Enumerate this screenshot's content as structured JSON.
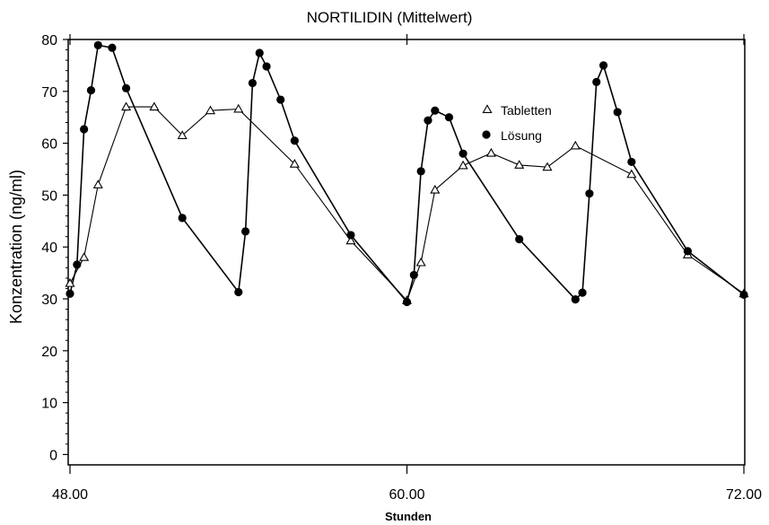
{
  "chart_data": {
    "type": "line",
    "title": "NORTILIDIN (Mittelwert)",
    "xlabel": "Stunden",
    "ylabel": "Konzentration (ng/ml)",
    "xlim": [
      48,
      72
    ],
    "ylim": [
      -2,
      80
    ],
    "x_ticks": [
      48,
      60,
      72
    ],
    "x_tick_labels": [
      "48.00",
      "60.00",
      "72.00"
    ],
    "y_ticks": [
      0,
      10,
      20,
      30,
      40,
      50,
      60,
      70,
      80
    ],
    "y_tick_labels": [
      "0",
      "10",
      "20",
      "30",
      "40",
      "50",
      "60",
      "70",
      "80"
    ],
    "grid": false,
    "legend_position": "upper-right",
    "series": [
      {
        "name": "Tabletten",
        "marker": "open-triangle",
        "color": "#000000",
        "points": [
          [
            48.0,
            33.0
          ],
          [
            48.5,
            38.0
          ],
          [
            49.0,
            52.0
          ],
          [
            50.0,
            67.0
          ],
          [
            51.0,
            67.0
          ],
          [
            52.0,
            61.5
          ],
          [
            53.0,
            66.3
          ],
          [
            54.0,
            66.6
          ],
          [
            56.0,
            56.0
          ],
          [
            58.0,
            41.2
          ],
          [
            60.0,
            29.7
          ],
          [
            60.5,
            37.0
          ],
          [
            61.0,
            51.0
          ],
          [
            62.0,
            55.7
          ],
          [
            63.0,
            58.1
          ],
          [
            64.0,
            55.8
          ],
          [
            65.0,
            55.4
          ],
          [
            66.0,
            59.5
          ],
          [
            68.0,
            54.0
          ],
          [
            70.0,
            38.5
          ],
          [
            72.0,
            31.0
          ]
        ]
      },
      {
        "name": "Lösung",
        "marker": "filled-circle",
        "color": "#000000",
        "points": [
          [
            48.0,
            31.0
          ],
          [
            48.25,
            36.6
          ],
          [
            48.5,
            62.7
          ],
          [
            48.75,
            70.2
          ],
          [
            49.0,
            78.9
          ],
          [
            49.5,
            78.4
          ],
          [
            50.0,
            70.6
          ],
          [
            52.0,
            45.6
          ],
          [
            54.0,
            31.3
          ],
          [
            54.25,
            43.0
          ],
          [
            54.5,
            71.6
          ],
          [
            54.75,
            77.4
          ],
          [
            55.0,
            74.8
          ],
          [
            55.5,
            68.4
          ],
          [
            56.0,
            60.5
          ],
          [
            58.0,
            42.3
          ],
          [
            60.0,
            29.4
          ],
          [
            60.25,
            34.6
          ],
          [
            60.5,
            54.6
          ],
          [
            60.75,
            64.4
          ],
          [
            61.0,
            66.3
          ],
          [
            61.5,
            65.0
          ],
          [
            62.0,
            58.0
          ],
          [
            64.0,
            41.5
          ],
          [
            66.0,
            29.9
          ],
          [
            66.25,
            31.2
          ],
          [
            66.5,
            50.3
          ],
          [
            66.75,
            71.8
          ],
          [
            67.0,
            75.0
          ],
          [
            67.5,
            66.0
          ],
          [
            68.0,
            56.4
          ],
          [
            70.0,
            39.2
          ],
          [
            72.0,
            30.8
          ]
        ]
      }
    ]
  }
}
